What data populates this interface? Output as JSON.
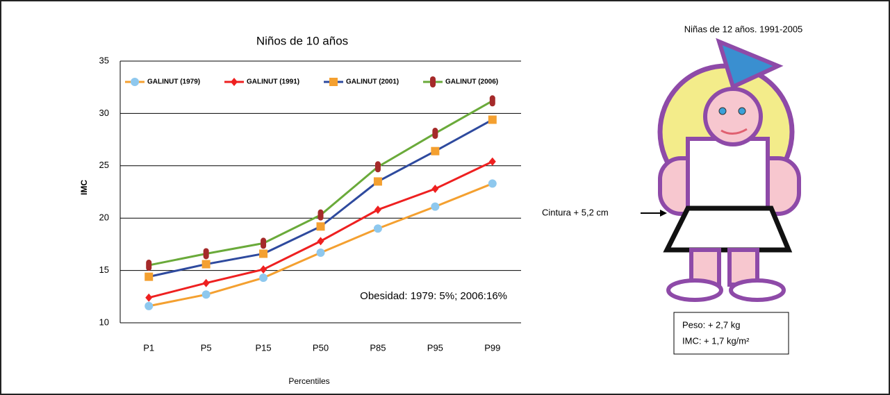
{
  "chart_data": {
    "type": "line",
    "title": "Niños de 10 años",
    "y_label": "IMC",
    "x_label": "Percentiles",
    "categories": [
      "P1",
      "P5",
      "P15",
      "P50",
      "P85",
      "P95",
      "P99"
    ],
    "series": [
      {
        "name": "GALINUT (1979)",
        "color": "#f4a030",
        "marker_color": "#8ec8ee",
        "marker": "circle",
        "values": [
          11.6,
          12.7,
          14.3,
          16.7,
          19.0,
          21.1,
          23.3
        ]
      },
      {
        "name": "GALINUT (1991)",
        "color": "#ee2020",
        "marker_color": "#ee2020",
        "marker": "diamond",
        "values": [
          12.4,
          13.8,
          15.1,
          17.8,
          20.8,
          22.8,
          25.4
        ]
      },
      {
        "name": "GALINUT (2001)",
        "color": "#2e4a9e",
        "marker_color": "#f4a030",
        "marker": "square",
        "values": [
          14.4,
          15.6,
          16.6,
          19.2,
          23.5,
          26.4,
          29.4
        ]
      },
      {
        "name": "GALINUT (2006)",
        "color": "#6aaa3a",
        "marker_color": "#a52a2a",
        "marker": "bar",
        "values": [
          15.5,
          16.6,
          17.6,
          20.3,
          24.9,
          28.1,
          31.2
        ]
      }
    ],
    "ylim": [
      10,
      35
    ],
    "yticks": [
      10,
      15,
      20,
      25,
      30,
      35
    ],
    "grid": true,
    "annotation": "Obesidad: 1979: 5%; 2006:16%"
  },
  "figure": {
    "title": "Niñas de 12 años. 1991-2005",
    "waist": "Cintura + 5,2 cm",
    "weight": "Peso: + 2,7 kg",
    "bmi": "IMC: + 1,7 kg/m²"
  }
}
